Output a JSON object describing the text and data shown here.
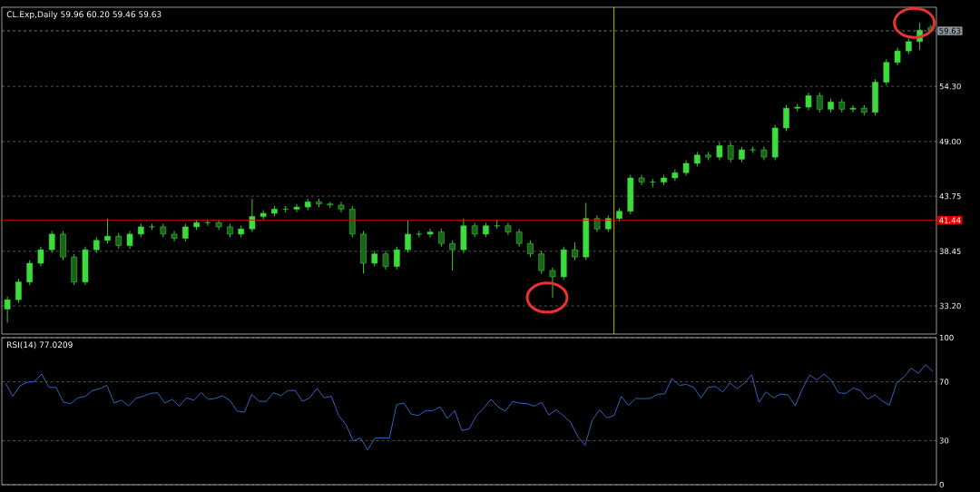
{
  "chart_data": [
    {
      "type": "candlestick",
      "title": "CL.Exp,Daily  59.96 60.20 59.46 59.63",
      "color": "#3ddc3d",
      "categories": [
        null,
        null,
        null,
        null,
        null,
        null,
        null,
        null,
        null,
        null,
        null,
        null,
        null,
        null,
        null,
        null,
        null,
        null,
        null,
        null,
        null,
        null,
        null,
        null,
        null,
        null,
        null,
        null,
        null,
        null,
        null,
        null,
        null,
        null,
        null,
        null,
        null,
        null,
        null,
        null,
        null,
        null,
        null,
        null,
        null,
        null,
        null,
        null,
        null,
        null,
        null,
        null,
        null,
        null,
        null,
        null,
        null,
        null,
        null,
        null,
        null,
        null,
        null,
        null,
        null,
        null,
        null,
        null,
        null,
        null,
        null,
        null,
        null,
        null,
        null,
        null,
        null,
        null,
        null,
        null,
        null,
        null,
        null,
        null
      ],
      "ohlc": [
        [
          32.9,
          34.1,
          31.6,
          33.8
        ],
        [
          33.8,
          35.8,
          33.5,
          35.5
        ],
        [
          35.5,
          37.6,
          35.2,
          37.3
        ],
        [
          37.3,
          38.9,
          37.0,
          38.6
        ],
        [
          38.6,
          40.4,
          38.3,
          40.1
        ],
        [
          40.1,
          40.4,
          37.6,
          37.9
        ],
        [
          37.9,
          38.2,
          35.2,
          35.5
        ],
        [
          35.5,
          38.9,
          35.2,
          38.6
        ],
        [
          38.6,
          39.8,
          38.3,
          39.5
        ],
        [
          39.5,
          41.6,
          39.2,
          39.9
        ],
        [
          39.9,
          40.2,
          38.7,
          39.0
        ],
        [
          39.0,
          40.4,
          38.7,
          40.1
        ],
        [
          40.1,
          41.1,
          39.8,
          40.8
        ],
        [
          40.8,
          41.1,
          40.5,
          40.8
        ],
        [
          40.8,
          41.1,
          39.8,
          40.1
        ],
        [
          40.1,
          40.4,
          39.4,
          39.7
        ],
        [
          39.7,
          41.1,
          39.4,
          40.8
        ],
        [
          40.8,
          41.5,
          40.5,
          41.2
        ],
        [
          41.2,
          41.5,
          40.9,
          41.2
        ],
        [
          41.2,
          41.5,
          40.5,
          40.8
        ],
        [
          40.8,
          41.1,
          39.8,
          40.1
        ],
        [
          40.1,
          40.9,
          39.8,
          40.6
        ],
        [
          40.6,
          43.5,
          40.3,
          41.8
        ],
        [
          41.8,
          42.4,
          41.5,
          42.1
        ],
        [
          42.1,
          42.8,
          41.8,
          42.5
        ],
        [
          42.5,
          42.8,
          42.2,
          42.5
        ],
        [
          42.5,
          43.0,
          42.2,
          42.7
        ],
        [
          42.7,
          43.5,
          42.4,
          43.2
        ],
        [
          43.2,
          43.5,
          42.7,
          43.0
        ],
        [
          43.0,
          43.2,
          42.6,
          42.9
        ],
        [
          42.9,
          43.2,
          42.2,
          42.5
        ],
        [
          42.5,
          42.8,
          39.8,
          40.1
        ],
        [
          40.1,
          40.4,
          36.3,
          37.3
        ],
        [
          37.3,
          38.5,
          37.0,
          38.2
        ],
        [
          38.2,
          38.5,
          36.7,
          37.0
        ],
        [
          37.0,
          38.9,
          36.7,
          38.6
        ],
        [
          38.6,
          41.4,
          38.3,
          40.1
        ],
        [
          40.1,
          40.4,
          39.8,
          40.1
        ],
        [
          40.1,
          40.6,
          39.8,
          40.3
        ],
        [
          40.3,
          40.6,
          38.9,
          39.2
        ],
        [
          39.2,
          39.5,
          36.6,
          38.6
        ],
        [
          38.6,
          41.6,
          38.3,
          40.9
        ],
        [
          40.9,
          41.2,
          39.8,
          40.1
        ],
        [
          40.1,
          41.2,
          39.8,
          40.9
        ],
        [
          40.9,
          41.5,
          40.6,
          40.9
        ],
        [
          40.9,
          41.2,
          40.0,
          40.3
        ],
        [
          40.3,
          40.6,
          38.9,
          39.2
        ],
        [
          39.2,
          39.5,
          37.9,
          38.2
        ],
        [
          38.2,
          38.5,
          36.3,
          36.6
        ],
        [
          36.6,
          36.9,
          34.0,
          36.0
        ],
        [
          36.0,
          38.9,
          35.7,
          38.6
        ],
        [
          38.6,
          39.3,
          37.6,
          37.9
        ],
        [
          37.9,
          43.1,
          37.6,
          41.6
        ],
        [
          41.6,
          41.9,
          40.3,
          40.6
        ],
        [
          40.6,
          41.9,
          40.3,
          41.6
        ],
        [
          41.6,
          42.6,
          41.3,
          42.3
        ],
        [
          42.3,
          45.8,
          42.0,
          45.5
        ],
        [
          45.5,
          45.8,
          44.8,
          45.1
        ],
        [
          45.1,
          45.4,
          44.6,
          45.1
        ],
        [
          45.1,
          45.8,
          44.8,
          45.5
        ],
        [
          45.5,
          46.3,
          45.2,
          46.0
        ],
        [
          46.0,
          47.2,
          45.7,
          46.9
        ],
        [
          46.9,
          48.0,
          46.6,
          47.7
        ],
        [
          47.7,
          48.0,
          47.2,
          47.5
        ],
        [
          47.5,
          48.9,
          47.2,
          48.6
        ],
        [
          48.6,
          48.9,
          47.0,
          47.3
        ],
        [
          47.3,
          48.5,
          47.0,
          48.2
        ],
        [
          48.2,
          48.5,
          47.9,
          48.2
        ],
        [
          48.2,
          48.5,
          47.2,
          47.5
        ],
        [
          47.5,
          50.6,
          47.2,
          50.3
        ],
        [
          50.3,
          52.5,
          50.0,
          52.2
        ],
        [
          52.2,
          52.6,
          51.9,
          52.3
        ],
        [
          52.3,
          53.7,
          52.0,
          53.4
        ],
        [
          53.4,
          53.7,
          51.8,
          52.1
        ],
        [
          52.1,
          53.1,
          51.8,
          52.8
        ],
        [
          52.8,
          53.1,
          51.8,
          52.1
        ],
        [
          52.1,
          52.5,
          51.8,
          52.2
        ],
        [
          52.2,
          52.5,
          51.5,
          51.8
        ],
        [
          51.8,
          55.0,
          51.5,
          54.7
        ],
        [
          54.7,
          56.9,
          54.4,
          56.6
        ],
        [
          56.6,
          58.0,
          56.3,
          57.7
        ],
        [
          57.7,
          58.9,
          57.4,
          58.6
        ],
        [
          58.6,
          60.4,
          57.8,
          59.7
        ],
        [
          59.96,
          60.2,
          59.46,
          59.63
        ]
      ],
      "ylim": [
        30.5,
        61.9
      ],
      "yticks": [
        {
          "value": 33.2,
          "label": "33.20"
        },
        {
          "value": 38.45,
          "label": "38.45"
        },
        {
          "value": 43.75,
          "label": "43.75"
        },
        {
          "value": 49.0,
          "label": "49.00"
        },
        {
          "value": 54.3,
          "label": "54.30"
        }
      ],
      "ref_lines": [
        {
          "axis": "y",
          "value": 59.63,
          "label": "59.63",
          "color": "#8c96a0",
          "line_style": "dashed"
        },
        {
          "axis": "y",
          "value": 41.44,
          "label": "41.44",
          "color": "#e00000",
          "line_style": "solid"
        }
      ],
      "grid": "y",
      "tick_labels": "y"
    },
    {
      "type": "line",
      "title": "RSI(14) 77.0209",
      "color": "#2f6fd0",
      "categories": [
        null,
        null,
        null,
        null,
        null,
        null,
        null,
        null,
        null,
        null,
        null,
        null,
        null,
        null,
        null,
        null,
        null,
        null,
        null,
        null,
        null,
        null,
        null,
        null,
        null,
        null,
        null,
        null,
        null,
        null,
        null,
        null,
        null,
        null,
        null,
        null,
        null,
        null,
        null,
        null,
        null,
        null,
        null,
        null,
        null,
        null,
        null,
        null,
        null,
        null,
        null,
        null,
        null,
        null,
        null,
        null,
        null,
        null,
        null,
        null,
        null,
        null,
        null,
        null,
        null,
        null,
        null,
        null,
        null,
        null,
        null,
        null,
        null,
        null,
        null,
        null,
        null,
        null,
        null,
        null,
        null,
        null,
        null,
        null,
        null,
        null,
        null,
        null,
        null,
        null,
        null,
        null,
        null,
        null,
        null,
        null,
        null,
        null,
        null,
        null,
        null,
        null,
        null,
        null,
        null,
        null,
        null,
        null,
        null,
        null,
        null,
        null,
        null,
        null,
        null,
        null,
        null,
        null,
        null,
        null,
        null,
        null,
        null,
        null,
        null,
        null,
        null,
        null,
        null
      ],
      "values": [
        69.2,
        60.1,
        67.2,
        69.6,
        70.2,
        75.3,
        66.2,
        66.2,
        56.1,
        55.1,
        59.1,
        60.1,
        64.1,
        65.2,
        67.6,
        55.5,
        57.5,
        53.6,
        58.7,
        60.1,
        62.1,
        62.5,
        55.5,
        58.1,
        53.4,
        59.1,
        57.5,
        62.5,
        58.1,
        58.7,
        60.5,
        57.1,
        50.0,
        49.4,
        61.5,
        56.7,
        56.7,
        62.5,
        60.5,
        64.1,
        64.1,
        56.7,
        59.1,
        65.6,
        59.1,
        60.1,
        47.0,
        40.9,
        29.8,
        31.8,
        23.7,
        31.8,
        31.8,
        31.8,
        54.6,
        55.5,
        48.0,
        47.0,
        50.4,
        50.4,
        53.0,
        45.0,
        50.4,
        36.9,
        37.9,
        47.0,
        52.0,
        58.1,
        53.0,
        50.0,
        56.7,
        55.5,
        55.1,
        53.4,
        56.1,
        47.4,
        51.0,
        47.0,
        42.5,
        32.8,
        26.8,
        43.9,
        51.0,
        45.4,
        47.0,
        60.1,
        54.0,
        58.7,
        58.5,
        58.7,
        61.5,
        61.9,
        72.2,
        67.6,
        68.2,
        66.2,
        59.1,
        66.2,
        66.8,
        63.1,
        69.2,
        65.2,
        69.2,
        74.8,
        56.1,
        63.1,
        59.1,
        61.7,
        61.1,
        53.6,
        65.2,
        74.6,
        71.2,
        75.3,
        70.8,
        62.5,
        62.1,
        65.8,
        64.1,
        58.1,
        61.1,
        57.1,
        54.0,
        69.2,
        73.2,
        79.3,
        75.7,
        81.7,
        77.0
      ],
      "ylim": [
        0,
        100
      ],
      "yticks": [
        0,
        30,
        70,
        100
      ],
      "grid": "y",
      "tick_labels": "y"
    }
  ]
}
